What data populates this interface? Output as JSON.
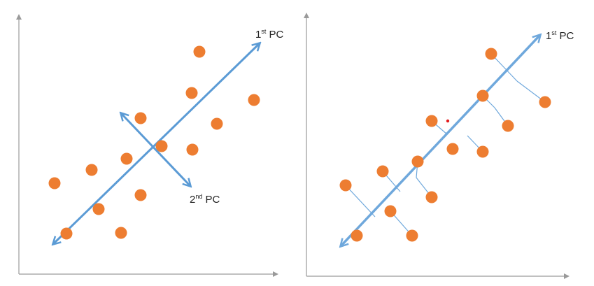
{
  "colors": {
    "axis": "#9a9a9a",
    "point": "#ED7D31",
    "arrow": "#5B9BD5",
    "arrow_light": "#6FA8DC",
    "projection": "#6FA8DC",
    "mean_dot": "#E31A1C"
  },
  "left_panel": {
    "pc1": {
      "base": "1",
      "sup": "st",
      "suffix": " PC"
    },
    "pc2": {
      "base": "2",
      "sup": "nd",
      "suffix": " PC"
    }
  },
  "right_panel": {
    "pc1": {
      "base": "1",
      "sup": "st",
      "suffix": " PC"
    }
  }
}
